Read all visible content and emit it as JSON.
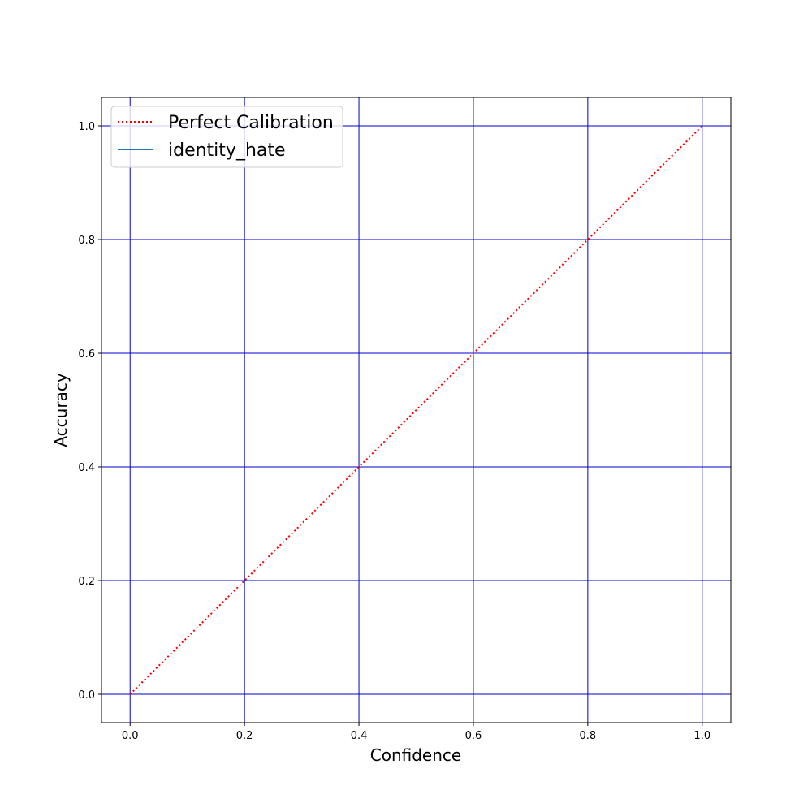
{
  "chart_data": {
    "type": "line",
    "title": "",
    "xlabel": "Confidence",
    "ylabel": "Accuracy",
    "xlim": [
      -0.05,
      1.05
    ],
    "ylim": [
      -0.05,
      1.05
    ],
    "xticks": [
      0.0,
      0.2,
      0.4,
      0.6,
      0.8,
      1.0
    ],
    "yticks": [
      0.0,
      0.2,
      0.4,
      0.6,
      0.8,
      1.0
    ],
    "xtick_labels": [
      "0.0",
      "0.2",
      "0.4",
      "0.6",
      "0.8",
      "1.0"
    ],
    "ytick_labels": [
      "0.0",
      "0.2",
      "0.4",
      "0.6",
      "0.8",
      "1.0"
    ],
    "grid": true,
    "grid_color": "#0000cc",
    "legend_position": "top-left",
    "series": [
      {
        "name": "Perfect Calibration",
        "style": "dotted",
        "color": "#ff0000",
        "x": [
          0.0,
          1.0
        ],
        "y": [
          0.0,
          1.0
        ]
      },
      {
        "name": "identity_hate",
        "style": "solid",
        "color": "#1f77b4",
        "x": [],
        "y": []
      }
    ]
  }
}
